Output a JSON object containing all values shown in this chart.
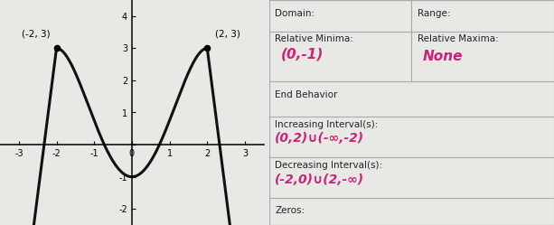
{
  "graph": {
    "xlim": [
      -3.5,
      3.5
    ],
    "ylim": [
      -2.5,
      4.5
    ],
    "xticks": [
      -3,
      -2,
      -1,
      0,
      1,
      2,
      3
    ],
    "yticks": [
      -2,
      -1,
      0,
      1,
      2,
      3,
      4
    ],
    "points": [
      [
        -2,
        3
      ],
      [
        2,
        3
      ]
    ],
    "point_labels": [
      "(-2, 3)",
      "(2, 3)"
    ],
    "bg_color": "#e8e8e4",
    "curve_color": "#111111",
    "linewidth": 2.2
  },
  "table": {
    "row_labels": [
      [
        "Domain:",
        "Range:"
      ],
      [
        "Relative Minima:",
        "Relative Maxima:"
      ],
      [
        "End Behavior",
        ""
      ],
      [
        "Increasing Interval(s):",
        ""
      ],
      [
        "Decreasing Interval(s):",
        ""
      ],
      [
        "Zeros:",
        ""
      ]
    ],
    "hw_minima": "(0,-1)",
    "hw_maxima": "None",
    "hw_increasing": "(0,2)∪(-∞,-2)",
    "hw_decreasing": "(-2,0)∪(2,-∞)",
    "hw_color": "#cc2277",
    "label_color": "#222222",
    "bg_color": "#eeeee8",
    "line_color": "#aaaaaa",
    "row_heights": [
      0.14,
      0.22,
      0.16,
      0.18,
      0.18,
      0.12
    ]
  }
}
